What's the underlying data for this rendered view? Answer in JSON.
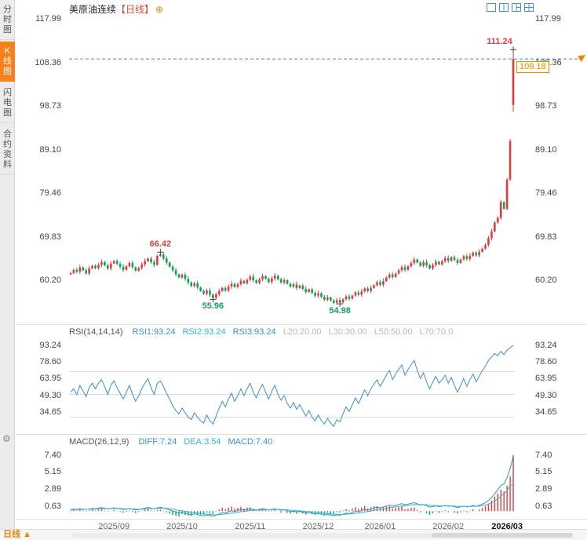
{
  "sidebar": {
    "tabs": [
      {
        "label": "分时图"
      },
      {
        "label": "K线图"
      },
      {
        "label": "闪电图"
      },
      {
        "label": "合约资料"
      }
    ],
    "selected_index": 1,
    "gear_icon": "⚙"
  },
  "header": {
    "symbol": "美原油连续",
    "period_tag": "【日线】",
    "add_icon": "⊕",
    "layout_icons": [
      "layout-single",
      "layout-two-pane",
      "layout-three-pane",
      "layout-four-grid"
    ],
    "icon_color": "#4a90d9"
  },
  "bottom_bar": {
    "period": "日线",
    "arrow": "▲"
  },
  "chart_data": [
    {
      "type": "candlestick",
      "title": "美原油连续【日线】",
      "up_color": "#e23b3b",
      "down_color": "#0fa05a",
      "y_ticks": [
        "117.99",
        "108.36",
        "98.73",
        "89.10",
        "79.46",
        "69.83",
        "60.20"
      ],
      "price_range": [
        51.0,
        119.8
      ],
      "x_ticks": [
        {
          "label": "2025/09",
          "index": 14
        },
        {
          "label": "2025/10",
          "index": 36
        },
        {
          "label": "2025/11",
          "index": 58
        },
        {
          "label": "2025/12",
          "index": 80
        },
        {
          "label": "2026/01",
          "index": 100
        },
        {
          "label": "2026/02",
          "index": 122
        },
        {
          "label": "2026/03",
          "index": 141
        }
      ],
      "first_open": 61.5,
      "closes": [
        61.8,
        62.5,
        62.1,
        63.0,
        62.4,
        61.7,
        62.8,
        63.4,
        62.9,
        63.6,
        64.2,
        63.5,
        62.8,
        63.9,
        64.5,
        63.8,
        63.2,
        62.5,
        63.3,
        64.0,
        63.1,
        62.3,
        62.9,
        63.7,
        64.4,
        65.0,
        64.2,
        63.6,
        65.6,
        65.9,
        65.0,
        64.1,
        63.2,
        62.4,
        61.5,
        60.8,
        61.4,
        60.5,
        59.7,
        58.9,
        59.5,
        58.6,
        57.8,
        57.2,
        57.9,
        57.0,
        56.3,
        57.1,
        57.8,
        58.5,
        57.9,
        58.8,
        59.4,
        58.7,
        59.3,
        60.1,
        59.5,
        60.3,
        61.0,
        60.2,
        59.6,
        60.4,
        61.1,
        60.5,
        59.8,
        60.6,
        61.2,
        60.4,
        59.7,
        60.2,
        59.4,
        58.8,
        59.3,
        58.5,
        59.0,
        58.3,
        57.6,
        58.2,
        57.4,
        56.8,
        57.3,
        56.5,
        55.9,
        56.4,
        55.7,
        55.2,
        55.8,
        55.3,
        56.0,
        56.6,
        56.1,
        56.8,
        57.5,
        57.0,
        57.7,
        58.4,
        57.8,
        58.5,
        59.1,
        59.8,
        59.2,
        60.0,
        60.8,
        61.5,
        60.9,
        61.7,
        62.4,
        63.1,
        62.5,
        63.3,
        64.0,
        64.8,
        64.1,
        63.4,
        64.2,
        63.5,
        62.8,
        63.6,
        64.3,
        63.7,
        64.4,
        65.1,
        64.5,
        65.3,
        64.7,
        64.0,
        64.8,
        65.5,
        64.9,
        65.6,
        66.3,
        65.7,
        66.5,
        67.2,
        68.0,
        69.5,
        71.0,
        73.0,
        74.0,
        77.5,
        76.0,
        82.5,
        91.0,
        109.18
      ],
      "overrides": {
        "29": {
          "high": 66.42
        },
        "46": {
          "low": 55.96
        },
        "87": {
          "low": 54.98
        },
        "143": {
          "open": 99.0,
          "high": 111.24,
          "low": 97.5
        }
      },
      "annotations": [
        {
          "index": 29,
          "text": "66.42",
          "pos": "above",
          "color": "#d84040"
        },
        {
          "index": 46,
          "text": "55.96",
          "pos": "below",
          "color": "#15a05f"
        },
        {
          "index": 87,
          "text": "54.98",
          "pos": "below",
          "color": "#15a05f"
        },
        {
          "index": 143,
          "text": "111.24",
          "pos": "above",
          "color": "#d84040"
        }
      ],
      "last_price": {
        "label": "109.18",
        "value": 109.18,
        "color": "#f08300",
        "line_color": "#4a86d8"
      }
    },
    {
      "type": "line",
      "name": "RSI(14,14,14)",
      "legend": [
        {
          "label": "RSI1:93.24",
          "color": "#3e8ece"
        },
        {
          "label": "RSI2:93.24",
          "color": "#2eb8c8"
        },
        {
          "label": "RSI3:93.24",
          "color": "#3e8ece"
        },
        {
          "label": "L20:20.00",
          "color": "#b8b8b8"
        },
        {
          "label": "L30:30.00",
          "color": "#b8b8b8"
        },
        {
          "label": "L50:50.00",
          "color": "#b8b8b8"
        },
        {
          "label": "L70:70.0",
          "color": "#b8b8b8"
        }
      ],
      "y_ticks": [
        "93.24",
        "78.60",
        "63.95",
        "49.30",
        "34.65"
      ],
      "range": [
        18,
        98
      ],
      "gridlines": [
        70,
        50,
        30
      ],
      "line_color": "#3e8ece",
      "values": [
        52,
        55,
        50,
        58,
        53,
        48,
        56,
        60,
        55,
        60,
        63,
        57,
        50,
        58,
        62,
        56,
        51,
        46,
        52,
        58,
        50,
        44,
        49,
        55,
        60,
        64,
        56,
        50,
        60,
        62,
        57,
        51,
        46,
        40,
        36,
        33,
        38,
        34,
        30,
        28,
        34,
        30,
        27,
        25,
        32,
        27,
        24,
        31,
        38,
        44,
        39,
        46,
        51,
        44,
        49,
        55,
        49,
        55,
        60,
        52,
        47,
        54,
        59,
        52,
        46,
        53,
        58,
        50,
        45,
        49,
        42,
        38,
        43,
        37,
        41,
        36,
        31,
        36,
        30,
        27,
        32,
        27,
        24,
        29,
        25,
        22,
        28,
        26,
        33,
        39,
        35,
        41,
        47,
        42,
        48,
        54,
        49,
        55,
        59,
        63,
        57,
        62,
        67,
        71,
        63,
        68,
        72,
        76,
        67,
        72,
        76,
        80,
        71,
        64,
        69,
        61,
        55,
        61,
        66,
        60,
        63,
        67,
        60,
        65,
        58,
        52,
        58,
        64,
        57,
        63,
        68,
        61,
        66,
        71,
        75,
        80,
        83,
        86,
        84,
        88,
        85,
        89,
        91,
        93.24
      ]
    },
    {
      "type": "bar",
      "name": "MACD(26,12,9)",
      "legend": [
        {
          "label": "DIFF:7.24",
          "color": "#3e8ece"
        },
        {
          "label": "DEA:3.54",
          "color": "#2eb8c8"
        },
        {
          "label": "MACD:7.40",
          "color": "#3e8ece"
        }
      ],
      "y_ticks": [
        "7.40",
        "5.15",
        "2.89",
        "0.63"
      ],
      "range": [
        -0.8,
        8.3
      ],
      "bar_up_color": "#e23b3b",
      "bar_down_color": "#0fa05a",
      "diff_color": "#3e8ece",
      "dea_color": "#2eb8c8",
      "diff": [
        0.2,
        0.28,
        0.24,
        0.33,
        0.28,
        0.2,
        0.28,
        0.36,
        0.32,
        0.4,
        0.46,
        0.38,
        0.3,
        0.36,
        0.44,
        0.38,
        0.3,
        0.22,
        0.27,
        0.35,
        0.26,
        0.16,
        0.21,
        0.3,
        0.4,
        0.48,
        0.4,
        0.32,
        0.44,
        0.5,
        0.42,
        0.3,
        0.16,
        0.02,
        -0.12,
        -0.24,
        -0.14,
        -0.26,
        -0.38,
        -0.48,
        -0.36,
        -0.46,
        -0.56,
        -0.62,
        -0.5,
        -0.58,
        -0.66,
        -0.52,
        -0.36,
        -0.18,
        -0.26,
        -0.08,
        0.06,
        -0.04,
        0.08,
        0.22,
        0.14,
        0.24,
        0.34,
        0.24,
        0.14,
        0.24,
        0.34,
        0.26,
        0.16,
        0.26,
        0.32,
        0.22,
        0.12,
        0.18,
        0.06,
        -0.04,
        0.02,
        -0.1,
        -0.02,
        -0.14,
        -0.26,
        -0.16,
        -0.3,
        -0.4,
        -0.3,
        -0.42,
        -0.52,
        -0.42,
        -0.52,
        -0.6,
        -0.48,
        -0.54,
        -0.4,
        -0.26,
        -0.32,
        -0.18,
        -0.02,
        -0.08,
        0.08,
        0.24,
        0.14,
        0.28,
        0.42,
        0.52,
        0.44,
        0.54,
        0.68,
        0.8,
        0.66,
        0.76,
        0.88,
        1.0,
        0.84,
        0.92,
        1.02,
        1.12,
        0.96,
        0.8,
        0.86,
        0.7,
        0.54,
        0.6,
        0.7,
        0.6,
        0.66,
        0.76,
        0.64,
        0.7,
        0.58,
        0.48,
        0.56,
        0.66,
        0.54,
        0.64,
        0.76,
        0.64,
        0.76,
        0.92,
        1.12,
        1.42,
        1.8,
        2.3,
        2.8,
        3.4,
        3.6,
        4.4,
        5.6,
        7.24
      ],
      "dea": [
        0.16,
        0.19,
        0.2,
        0.23,
        0.24,
        0.23,
        0.24,
        0.27,
        0.28,
        0.3,
        0.33,
        0.34,
        0.33,
        0.34,
        0.36,
        0.36,
        0.35,
        0.32,
        0.31,
        0.32,
        0.31,
        0.28,
        0.26,
        0.27,
        0.3,
        0.33,
        0.35,
        0.34,
        0.36,
        0.39,
        0.39,
        0.37,
        0.33,
        0.27,
        0.19,
        0.1,
        0.05,
        -0.01,
        -0.09,
        -0.17,
        -0.21,
        -0.26,
        -0.32,
        -0.38,
        -0.4,
        -0.44,
        -0.48,
        -0.49,
        -0.46,
        -0.41,
        -0.38,
        -0.32,
        -0.24,
        -0.2,
        -0.14,
        -0.07,
        -0.03,
        0.02,
        0.09,
        0.12,
        0.12,
        0.15,
        0.19,
        0.2,
        0.19,
        0.21,
        0.23,
        0.23,
        0.21,
        0.2,
        0.17,
        0.13,
        0.11,
        0.07,
        0.05,
        0.01,
        -0.04,
        -0.07,
        -0.11,
        -0.17,
        -0.2,
        -0.24,
        -0.3,
        -0.32,
        -0.36,
        -0.41,
        -0.42,
        -0.45,
        -0.44,
        -0.4,
        -0.38,
        -0.34,
        -0.28,
        -0.24,
        -0.17,
        -0.09,
        -0.04,
        0.02,
        0.1,
        0.19,
        0.24,
        0.3,
        0.37,
        0.46,
        0.5,
        0.55,
        0.62,
        0.69,
        0.72,
        0.76,
        0.81,
        0.88,
        0.89,
        0.87,
        0.87,
        0.84,
        0.78,
        0.74,
        0.73,
        0.71,
        0.7,
        0.71,
        0.7,
        0.7,
        0.67,
        0.63,
        0.62,
        0.62,
        0.61,
        0.61,
        0.64,
        0.64,
        0.66,
        0.71,
        0.79,
        0.92,
        1.1,
        1.34,
        1.63,
        1.98,
        2.3,
        2.72,
        3.3,
        3.54
      ]
    }
  ]
}
